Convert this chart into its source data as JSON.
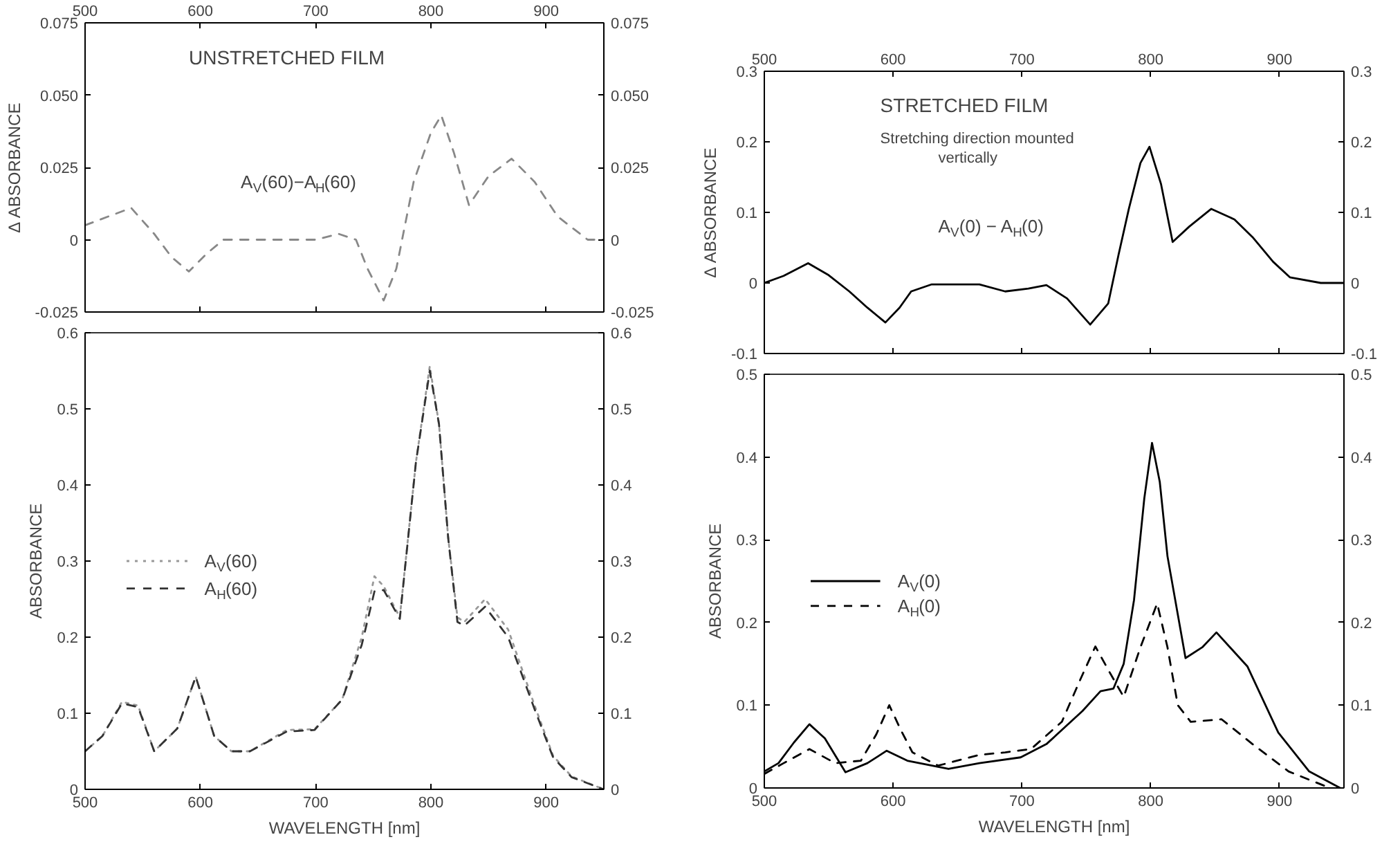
{
  "chart_data": [
    {
      "type": "line",
      "title": "UNSTRETCHED FILM",
      "ylabel": "Δ ABSORBANCE",
      "grid": false,
      "marker": "none",
      "xlim": [
        500,
        950
      ],
      "xticks": [
        500,
        600,
        700,
        800,
        900
      ],
      "tick_labels": "y",
      "x2lim": [
        500,
        950
      ],
      "x2ticks": [
        500,
        600,
        700,
        800,
        900
      ],
      "ylim": [
        -0.025,
        0.075
      ],
      "yticks": [
        -0.025,
        0,
        0.025,
        {
          "value": 0.05,
          "label": "0.050"
        },
        0.075
      ],
      "y2lim": [
        -0.025,
        0.075
      ],
      "y2ticks": [
        -0.025,
        0,
        0.025,
        {
          "value": 0.05,
          "label": "0.050"
        },
        0.075
      ],
      "series": [
        {
          "name": "A$_{V}$(60)−A$_{H}$(60)",
          "color": "#888888",
          "line_style": "dashed",
          "x": [
            500,
            520,
            540,
            560,
            575,
            590,
            605,
            620,
            700,
            720,
            735,
            745,
            759,
            770,
            785,
            800,
            809,
            820,
            833,
            850,
            870,
            890,
            910,
            936,
            950
          ],
          "values": [
            0.005,
            0.008,
            0.011,
            0.002,
            -0.006,
            -0.011,
            -0.005,
            0,
            0,
            0.002,
            0,
            -0.01,
            -0.021,
            -0.01,
            0.02,
            0.037,
            0.043,
            0.03,
            0.012,
            0.022,
            0.028,
            0.02,
            0.008,
            0,
            0
          ]
        }
      ]
    },
    {
      "type": "line",
      "title": "STRETCHED FILM",
      "subtitle": "Stretching direction mounted vertically",
      "ylabel": "Δ ABSORBANCE",
      "grid": false,
      "marker": "none",
      "xlim": [
        500,
        950
      ],
      "xticks": [
        500,
        600,
        700,
        800,
        900
      ],
      "tick_labels": "y",
      "x2lim": [
        500,
        950
      ],
      "x2ticks": [
        500,
        600,
        700,
        800,
        900
      ],
      "ylim": [
        -0.1,
        0.3
      ],
      "yticks": [
        -0.1,
        0,
        0.1,
        0.2,
        0.3
      ],
      "y2lim": [
        -0.1,
        0.3
      ],
      "y2ticks": [
        -0.1,
        0,
        0.1,
        0.2,
        0.3
      ],
      "series": [
        {
          "name": "A$_{V}$(0) − A$_{H}$(0)",
          "color": "#000000",
          "line_style": "solid",
          "x": [
            500,
            515,
            534,
            550,
            566,
            580,
            594,
            605,
            614,
            630,
            667,
            687,
            705,
            719,
            735,
            753,
            767,
            775,
            783,
            792,
            799,
            808,
            817,
            830,
            847,
            865,
            879,
            895,
            908,
            932,
            950
          ],
          "values": [
            0,
            0.01,
            0.028,
            0.011,
            -0.012,
            -0.035,
            -0.056,
            -0.035,
            -0.012,
            -0.002,
            -0.002,
            -0.012,
            -0.008,
            -0.003,
            -0.022,
            -0.059,
            -0.029,
            0.04,
            0.105,
            0.17,
            0.193,
            0.14,
            0.058,
            0.08,
            0.105,
            0.09,
            0.065,
            0.03,
            0.008,
            0,
            0
          ]
        }
      ]
    },
    {
      "type": "line",
      "xlabel": "WAVELENGTH [nm]",
      "ylabel": "ABSORBANCE",
      "grid": false,
      "marker": "none",
      "legend": "left",
      "xlim": [
        500,
        950
      ],
      "xticks": [
        500,
        600,
        700,
        800,
        900
      ],
      "ylim": [
        0,
        0.6
      ],
      "yticks": [
        0,
        0.1,
        0.2,
        0.3,
        0.4,
        0.5,
        0.6
      ],
      "y2lim": [
        0,
        0.6
      ],
      "y2ticks": [
        0,
        0.1,
        0.2,
        0.3,
        0.4,
        0.5,
        0.6
      ],
      "series": [
        {
          "name": "A$_{V}$(60)",
          "color": "#999999",
          "line_style": "dotted",
          "x": [
            500,
            515,
            532,
            546,
            560,
            580,
            596,
            612,
            627,
            643,
            675,
            699,
            723,
            740,
            751,
            759,
            773,
            787,
            799,
            807,
            815,
            823,
            829,
            847,
            867,
            890,
            906,
            922,
            950
          ],
          "values": [
            0.05,
            0.07,
            0.115,
            0.11,
            0.05,
            0.08,
            0.148,
            0.07,
            0.05,
            0.05,
            0.078,
            0.079,
            0.118,
            0.2,
            0.28,
            0.267,
            0.226,
            0.43,
            0.556,
            0.48,
            0.33,
            0.226,
            0.22,
            0.25,
            0.21,
            0.11,
            0.044,
            0.017,
            0
          ]
        },
        {
          "name": "A$_{H}$(60)",
          "color": "#333333",
          "line_style": "dashed",
          "x": [
            500,
            515,
            532,
            546,
            560,
            580,
            596,
            612,
            627,
            643,
            675,
            699,
            723,
            740,
            751,
            759,
            773,
            787,
            799,
            807,
            815,
            823,
            829,
            847,
            867,
            890,
            906,
            922,
            950
          ],
          "values": [
            0.05,
            0.07,
            0.113,
            0.108,
            0.05,
            0.08,
            0.148,
            0.07,
            0.05,
            0.05,
            0.076,
            0.078,
            0.118,
            0.19,
            0.26,
            0.262,
            0.224,
            0.43,
            0.55,
            0.48,
            0.33,
            0.22,
            0.215,
            0.24,
            0.2,
            0.105,
            0.042,
            0.016,
            0
          ]
        }
      ]
    },
    {
      "type": "line",
      "xlabel": "WAVELENGTH [nm]",
      "ylabel": "ABSORBANCE",
      "grid": false,
      "marker": "none",
      "legend": "left",
      "xlim": [
        500,
        950
      ],
      "xticks": [
        500,
        600,
        700,
        800,
        900
      ],
      "ylim": [
        0,
        0.5
      ],
      "yticks": [
        0,
        0.1,
        0.2,
        0.3,
        0.4,
        0.5
      ],
      "y2lim": [
        0,
        0.5
      ],
      "y2ticks": [
        0,
        0.1,
        0.2,
        0.3,
        0.4,
        0.5
      ],
      "series": [
        {
          "name": "A$_{V}$(0)",
          "color": "#000000",
          "line_style": "solid",
          "x": [
            500,
            511,
            523,
            535,
            547,
            563,
            580,
            595,
            611,
            643,
            667,
            699,
            719,
            747,
            761,
            771,
            779,
            787,
            795,
            801,
            807,
            813,
            827,
            840,
            851,
            875,
            899,
            923,
            947
          ],
          "values": [
            0.02,
            0.03,
            0.055,
            0.077,
            0.06,
            0.019,
            0.03,
            0.045,
            0.033,
            0.023,
            0.03,
            0.037,
            0.053,
            0.093,
            0.117,
            0.12,
            0.15,
            0.227,
            0.35,
            0.417,
            0.37,
            0.28,
            0.157,
            0.17,
            0.188,
            0.147,
            0.067,
            0.02,
            0
          ]
        },
        {
          "name": "A$_{H}$(0)",
          "color": "#000000",
          "line_style": "dashed",
          "x": [
            500,
            515,
            535,
            555,
            575,
            587,
            597,
            606,
            615,
            635,
            667,
            687,
            707,
            731,
            745,
            757,
            768,
            779,
            792,
            805,
            813,
            821,
            831,
            855,
            879,
            907,
            939
          ],
          "values": [
            0.017,
            0.03,
            0.047,
            0.03,
            0.033,
            0.065,
            0.1,
            0.07,
            0.043,
            0.027,
            0.04,
            0.043,
            0.047,
            0.08,
            0.13,
            0.171,
            0.14,
            0.11,
            0.17,
            0.223,
            0.17,
            0.1,
            0.08,
            0.083,
            0.053,
            0.02,
            0
          ]
        }
      ]
    }
  ]
}
